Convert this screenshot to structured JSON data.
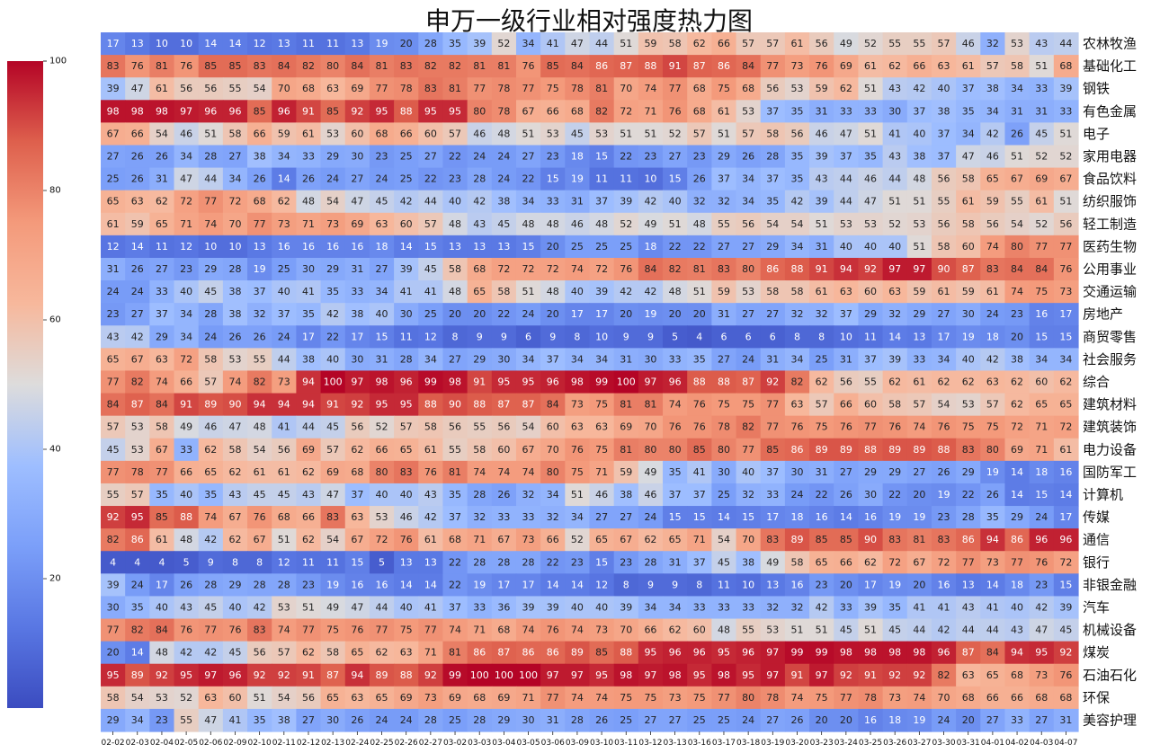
{
  "chart_data": {
    "type": "heatmap",
    "title": "申万一级行业相对强度热力图",
    "colormap": "coolwarm",
    "value_range": [
      0,
      100
    ],
    "colorbar_ticks": [
      20,
      40,
      60,
      80,
      100
    ],
    "x": [
      "02-02",
      "02-03",
      "02-04",
      "02-05",
      "02-06",
      "02-09",
      "02-10",
      "02-11",
      "02-12",
      "02-13",
      "02-24",
      "02-25",
      "02-26",
      "02-27",
      "03-02",
      "03-03",
      "03-04",
      "03-05",
      "03-06",
      "03-09",
      "03-10",
      "03-11",
      "03-12",
      "03-13",
      "03-16",
      "03-17",
      "03-18",
      "03-19",
      "03-20",
      "03-23",
      "03-24",
      "03-25",
      "03-26",
      "03-27",
      "03-30",
      "03-31",
      "04-01",
      "04-02",
      "04-03",
      "04-07"
    ],
    "y": [
      "农林牧渔",
      "基础化工",
      "钢铁",
      "有色金属",
      "电子",
      "家用电器",
      "食品饮料",
      "纺织服饰",
      "轻工制造",
      "医药生物",
      "公用事业",
      "交通运输",
      "房地产",
      "商贸零售",
      "社会服务",
      "综合",
      "建筑材料",
      "建筑装饰",
      "电力设备",
      "国防军工",
      "计算机",
      "传媒",
      "通信",
      "银行",
      "非银金融",
      "汽车",
      "机械设备",
      "煤炭",
      "石油石化",
      "环保",
      "美容护理"
    ],
    "values": [
      [
        17,
        13,
        10,
        10,
        14,
        14,
        12,
        13,
        11,
        11,
        13,
        19,
        20,
        28,
        35,
        39,
        52,
        34,
        41,
        47,
        44,
        51,
        59,
        58,
        62,
        66,
        57,
        57,
        61,
        56,
        49,
        52,
        55,
        55,
        57,
        46,
        32,
        53,
        43,
        44
      ],
      [
        83,
        76,
        81,
        76,
        85,
        85,
        83,
        84,
        82,
        80,
        84,
        81,
        83,
        82,
        82,
        81,
        81,
        76,
        85,
        84,
        86,
        87,
        88,
        91,
        87,
        86,
        84,
        77,
        73,
        76,
        69,
        61,
        62,
        66,
        63,
        61,
        57,
        58,
        51,
        68
      ],
      [
        39,
        47,
        61,
        56,
        56,
        55,
        54,
        70,
        68,
        63,
        69,
        77,
        78,
        83,
        81,
        77,
        78,
        77,
        75,
        78,
        81,
        70,
        74,
        77,
        68,
        75,
        68,
        56,
        53,
        59,
        62,
        51,
        43,
        42,
        40,
        37,
        38,
        34,
        33,
        39
      ],
      [
        98,
        98,
        98,
        97,
        96,
        96,
        85,
        96,
        91,
        85,
        92,
        95,
        88,
        95,
        95,
        80,
        78,
        67,
        66,
        68,
        82,
        72,
        71,
        76,
        68,
        61,
        53,
        37,
        35,
        31,
        33,
        33,
        30,
        37,
        38,
        35,
        34,
        31,
        31,
        33
      ],
      [
        67,
        66,
        54,
        46,
        51,
        58,
        66,
        59,
        61,
        53,
        60,
        68,
        66,
        60,
        57,
        46,
        48,
        51,
        53,
        45,
        53,
        51,
        51,
        52,
        57,
        51,
        57,
        58,
        56,
        46,
        47,
        51,
        41,
        40,
        37,
        34,
        42,
        26,
        45,
        51
      ],
      [
        27,
        26,
        26,
        34,
        28,
        27,
        38,
        34,
        33,
        29,
        30,
        23,
        25,
        27,
        22,
        24,
        24,
        27,
        23,
        18,
        15,
        22,
        23,
        27,
        23,
        29,
        26,
        28,
        35,
        39,
        37,
        35,
        43,
        38,
        37,
        47,
        46,
        51,
        52,
        52
      ],
      [
        25,
        26,
        31,
        47,
        44,
        34,
        26,
        14,
        26,
        24,
        27,
        24,
        25,
        22,
        23,
        28,
        24,
        22,
        15,
        19,
        11,
        11,
        10,
        15,
        26,
        37,
        34,
        37,
        35,
        43,
        44,
        46,
        44,
        48,
        56,
        58,
        65,
        67,
        69,
        67
      ],
      [
        65,
        63,
        62,
        72,
        77,
        72,
        68,
        62,
        48,
        54,
        47,
        45,
        42,
        44,
        40,
        42,
        38,
        34,
        33,
        31,
        37,
        39,
        42,
        40,
        32,
        32,
        34,
        35,
        42,
        39,
        44,
        47,
        51,
        51,
        55,
        61,
        59,
        55,
        61,
        51
      ],
      [
        61,
        59,
        65,
        71,
        74,
        70,
        77,
        73,
        71,
        73,
        69,
        63,
        60,
        57,
        48,
        43,
        45,
        48,
        48,
        46,
        48,
        52,
        49,
        51,
        48,
        55,
        56,
        54,
        54,
        51,
        53,
        53,
        52,
        53,
        56,
        58,
        56,
        54,
        52,
        56
      ],
      [
        12,
        14,
        11,
        12,
        10,
        10,
        13,
        16,
        16,
        16,
        16,
        18,
        14,
        15,
        13,
        13,
        13,
        15,
        20,
        25,
        25,
        25,
        18,
        22,
        22,
        27,
        27,
        29,
        34,
        31,
        40,
        40,
        40,
        51,
        58,
        60,
        74,
        80,
        77,
        77
      ],
      [
        31,
        26,
        27,
        23,
        29,
        28,
        19,
        25,
        30,
        29,
        31,
        27,
        39,
        45,
        58,
        68,
        72,
        72,
        72,
        74,
        72,
        76,
        84,
        82,
        81,
        83,
        80,
        86,
        88,
        91,
        94,
        92,
        97,
        97,
        90,
        87,
        83,
        84,
        84,
        76
      ],
      [
        24,
        24,
        33,
        40,
        45,
        38,
        37,
        40,
        41,
        35,
        33,
        34,
        41,
        41,
        48,
        65,
        58,
        51,
        48,
        40,
        39,
        42,
        42,
        48,
        51,
        59,
        53,
        58,
        58,
        61,
        63,
        60,
        63,
        59,
        61,
        59,
        61,
        74,
        75,
        73
      ],
      [
        23,
        27,
        37,
        34,
        28,
        38,
        32,
        37,
        35,
        42,
        38,
        40,
        30,
        25,
        20,
        20,
        22,
        24,
        20,
        17,
        17,
        20,
        19,
        20,
        20,
        31,
        27,
        27,
        32,
        32,
        37,
        29,
        32,
        29,
        27,
        30,
        24,
        23,
        16,
        17
      ],
      [
        43,
        42,
        29,
        34,
        24,
        26,
        26,
        24,
        17,
        22,
        17,
        15,
        11,
        12,
        8,
        9,
        9,
        6,
        9,
        8,
        10,
        9,
        9,
        5,
        4,
        6,
        6,
        6,
        8,
        8,
        10,
        11,
        14,
        13,
        17,
        19,
        18,
        20,
        15,
        15
      ],
      [
        65,
        67,
        63,
        72,
        58,
        53,
        55,
        44,
        38,
        40,
        30,
        31,
        28,
        34,
        27,
        29,
        30,
        34,
        37,
        34,
        34,
        31,
        30,
        33,
        35,
        27,
        24,
        31,
        34,
        25,
        31,
        37,
        39,
        33,
        34,
        40,
        42,
        38,
        34,
        34
      ],
      [
        77,
        82,
        74,
        66,
        57,
        74,
        82,
        73,
        94,
        100,
        97,
        98,
        96,
        99,
        98,
        91,
        95,
        95,
        96,
        98,
        99,
        100,
        97,
        96,
        88,
        88,
        87,
        92,
        82,
        62,
        56,
        55,
        62,
        61,
        62,
        62,
        63,
        62,
        60,
        62
      ],
      [
        84,
        87,
        84,
        91,
        89,
        90,
        94,
        94,
        94,
        91,
        92,
        95,
        95,
        88,
        90,
        88,
        87,
        87,
        84,
        73,
        75,
        81,
        81,
        74,
        76,
        75,
        75,
        77,
        63,
        57,
        66,
        60,
        58,
        57,
        54,
        53,
        57,
        62,
        65,
        65
      ],
      [
        57,
        53,
        58,
        49,
        46,
        47,
        48,
        41,
        44,
        45,
        56,
        52,
        57,
        58,
        56,
        55,
        56,
        54,
        60,
        63,
        63,
        69,
        70,
        76,
        76,
        78,
        82,
        77,
        76,
        75,
        76,
        77,
        76,
        74,
        76,
        75,
        75,
        72,
        71,
        72
      ],
      [
        45,
        53,
        67,
        33,
        62,
        58,
        54,
        56,
        69,
        57,
        62,
        66,
        65,
        61,
        55,
        58,
        60,
        67,
        70,
        76,
        75,
        81,
        80,
        80,
        85,
        80,
        77,
        85,
        86,
        89,
        89,
        88,
        89,
        89,
        88,
        83,
        80,
        69,
        71,
        61
      ],
      [
        77,
        78,
        77,
        66,
        65,
        62,
        61,
        61,
        62,
        69,
        68,
        80,
        83,
        76,
        81,
        74,
        74,
        74,
        80,
        75,
        71,
        59,
        49,
        35,
        41,
        30,
        40,
        37,
        30,
        31,
        27,
        29,
        29,
        27,
        26,
        29,
        19,
        14,
        18,
        16
      ],
      [
        55,
        57,
        35,
        40,
        35,
        43,
        45,
        45,
        43,
        47,
        37,
        40,
        40,
        43,
        35,
        28,
        26,
        32,
        34,
        51,
        46,
        38,
        46,
        37,
        37,
        25,
        32,
        33,
        24,
        22,
        26,
        30,
        22,
        20,
        19,
        22,
        26,
        14,
        15,
        14
      ],
      [
        92,
        95,
        85,
        88,
        74,
        67,
        76,
        68,
        66,
        83,
        63,
        53,
        46,
        42,
        37,
        32,
        33,
        33,
        32,
        34,
        27,
        27,
        24,
        15,
        15,
        14,
        15,
        17,
        18,
        16,
        14,
        16,
        19,
        19,
        23,
        28,
        35,
        29,
        24,
        17
      ],
      [
        82,
        86,
        61,
        48,
        42,
        62,
        67,
        51,
        62,
        54,
        67,
        72,
        76,
        61,
        68,
        71,
        67,
        73,
        66,
        52,
        65,
        67,
        62,
        65,
        71,
        54,
        70,
        83,
        89,
        85,
        85,
        90,
        83,
        81,
        83,
        86,
        94,
        86,
        96,
        96
      ],
      [
        4,
        4,
        4,
        5,
        9,
        8,
        8,
        12,
        11,
        11,
        15,
        5,
        13,
        13,
        22,
        28,
        28,
        28,
        22,
        23,
        15,
        23,
        28,
        31,
        37,
        45,
        38,
        49,
        58,
        65,
        66,
        62,
        72,
        67,
        72,
        77,
        73,
        77,
        76,
        72
      ],
      [
        39,
        24,
        17,
        26,
        28,
        29,
        28,
        28,
        23,
        19,
        16,
        16,
        14,
        14,
        22,
        19,
        17,
        17,
        14,
        14,
        12,
        8,
        9,
        9,
        8,
        11,
        10,
        13,
        16,
        23,
        20,
        17,
        19,
        20,
        16,
        13,
        14,
        18,
        23,
        15
      ],
      [
        30,
        35,
        40,
        43,
        45,
        40,
        42,
        53,
        51,
        49,
        47,
        44,
        40,
        41,
        37,
        33,
        36,
        39,
        39,
        40,
        40,
        39,
        34,
        34,
        33,
        33,
        33,
        32,
        32,
        42,
        33,
        39,
        35,
        41,
        41,
        43,
        41,
        40,
        42,
        39
      ],
      [
        77,
        82,
        84,
        76,
        77,
        76,
        83,
        74,
        77,
        75,
        76,
        77,
        75,
        77,
        74,
        71,
        68,
        74,
        76,
        74,
        73,
        70,
        66,
        62,
        60,
        48,
        55,
        53,
        51,
        51,
        45,
        51,
        45,
        44,
        42,
        44,
        44,
        43,
        47,
        45
      ],
      [
        20,
        14,
        48,
        42,
        42,
        45,
        56,
        57,
        62,
        58,
        65,
        62,
        63,
        71,
        81,
        86,
        87,
        86,
        86,
        89,
        85,
        88,
        95,
        96,
        96,
        95,
        96,
        97,
        99,
        99,
        98,
        98,
        98,
        98,
        96,
        87,
        84,
        94,
        95,
        92
      ],
      [
        95,
        89,
        92,
        95,
        97,
        96,
        92,
        92,
        91,
        87,
        94,
        89,
        88,
        92,
        99,
        100,
        100,
        100,
        97,
        97,
        95,
        98,
        97,
        98,
        95,
        98,
        95,
        97,
        91,
        97,
        92,
        91,
        92,
        92,
        82,
        63,
        65,
        68,
        73,
        76
      ],
      [
        58,
        54,
        53,
        52,
        63,
        60,
        51,
        54,
        56,
        65,
        63,
        65,
        69,
        73,
        69,
        68,
        69,
        71,
        77,
        74,
        74,
        75,
        75,
        73,
        75,
        77,
        80,
        78,
        74,
        75,
        77,
        78,
        73,
        74,
        70,
        68,
        66,
        66,
        68,
        68
      ],
      [
        29,
        34,
        23,
        55,
        47,
        41,
        35,
        38,
        27,
        30,
        26,
        24,
        24,
        28,
        25,
        28,
        29,
        30,
        31,
        28,
        26,
        25,
        27,
        27,
        25,
        25,
        24,
        27,
        26,
        20,
        20,
        16,
        18,
        19,
        24,
        20,
        27,
        33,
        27,
        31
      ]
    ]
  }
}
